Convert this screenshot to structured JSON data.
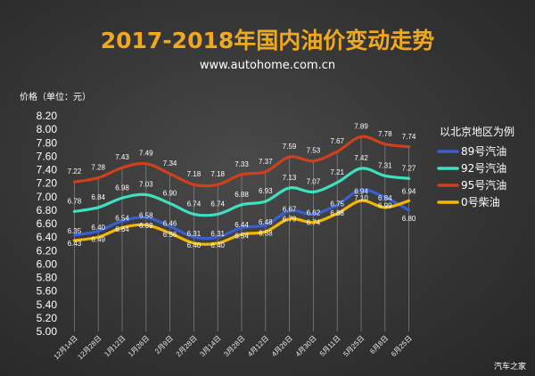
{
  "header": {
    "title": "2017-2018年国内油价变动走势",
    "site": "www.autohome.com.cn"
  },
  "brand": "汽车之家",
  "chart_data": {
    "type": "line",
    "ylabel": "价格（单位：元）",
    "xlabel": "",
    "ylim": [
      5.0,
      8.2
    ],
    "yticks": [
      "8.20",
      "8.00",
      "7.80",
      "7.60",
      "7.40",
      "7.20",
      "7.00",
      "6.80",
      "6.60",
      "6.40",
      "6.20",
      "6.00",
      "5.80",
      "5.60",
      "5.40",
      "5.20",
      "5.00"
    ],
    "categories": [
      "12月14日",
      "12月28日",
      "1月12日",
      "1月26日",
      "2月9日",
      "2月28日",
      "3月14日",
      "3月28日",
      "4月12日",
      "4月26日",
      "4月30日",
      "5月11日",
      "5月25日",
      "6月8日",
      "6月25日"
    ],
    "legend_title": "以北京地区为例",
    "legend_position": "right",
    "grid": false,
    "series": [
      {
        "name": "89号汽油",
        "color": "#3a5fd0",
        "values": [
          6.43,
          6.49,
          6.64,
          6.69,
          6.56,
          6.4,
          6.4,
          6.54,
          6.58,
          6.79,
          6.74,
          6.88,
          7.1,
          6.99,
          6.8
        ],
        "labels": [
          "6.43",
          "6.49",
          "6.64",
          "6.69",
          "6.56",
          "6.40",
          "6.40",
          "6.54",
          "6.58",
          "6.79",
          "6.74",
          "6.88",
          "7.10",
          "6.99",
          "6.80"
        ]
      },
      {
        "name": "92号汽油",
        "color": "#3fe0c0",
        "values": [
          6.78,
          6.84,
          6.98,
          7.03,
          6.9,
          6.74,
          6.74,
          6.88,
          6.93,
          7.13,
          7.07,
          7.21,
          7.42,
          7.31,
          7.27
        ],
        "labels": [
          "6.78",
          "6.84",
          "6.98",
          "7.03",
          "6.90",
          "6.74",
          "6.74",
          "6.88",
          "6.93",
          "7.13",
          "7.07",
          "7.21",
          "7.42",
          "7.31",
          "7.27"
        ]
      },
      {
        "name": "95号汽油",
        "color": "#d0401a",
        "values": [
          7.22,
          7.28,
          7.43,
          7.49,
          7.34,
          7.18,
          7.18,
          7.33,
          7.37,
          7.59,
          7.53,
          7.67,
          7.89,
          7.78,
          7.74
        ],
        "labels": [
          "7.22",
          "7.28",
          "7.43",
          "7.49",
          "7.34",
          "7.18",
          "7.18",
          "7.33",
          "7.37",
          "7.59",
          "7.53",
          "7.67",
          "7.89",
          "7.78",
          "7.74"
        ]
      },
      {
        "name": "0号柴油",
        "color": "#f5b800",
        "values": [
          6.35,
          6.4,
          6.54,
          6.58,
          6.46,
          6.31,
          6.31,
          6.44,
          6.48,
          6.67,
          6.62,
          6.75,
          6.94,
          6.84,
          6.94
        ],
        "labels": [
          "6.35",
          "6.40",
          "6.54",
          "6.58",
          "6.46",
          "6.31",
          "6.31",
          "6.44",
          "6.48",
          "6.67",
          "6.62",
          "6.75",
          "6.94",
          "6.84",
          "6.94"
        ]
      }
    ]
  }
}
